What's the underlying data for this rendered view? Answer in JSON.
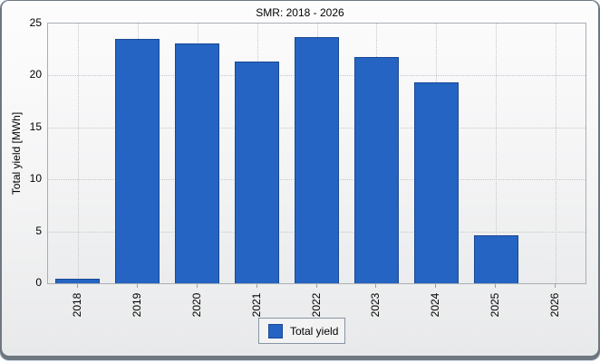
{
  "chart_data": {
    "type": "bar",
    "title": "SMR: 2018 - 2026",
    "ylabel": "Total yield [MWh]",
    "xlabel": "",
    "categories": [
      "2018",
      "2019",
      "2020",
      "2021",
      "2022",
      "2023",
      "2024",
      "2025",
      "2026"
    ],
    "series": [
      {
        "name": "Total yield",
        "values": [
          0.4,
          23.5,
          23.1,
          21.3,
          23.7,
          21.8,
          19.3,
          4.6,
          0
        ]
      }
    ],
    "ylim": [
      0,
      25
    ],
    "yticks": [
      0,
      5,
      10,
      15,
      20,
      25
    ],
    "grid": "dotted horizontal and vertical at category centers",
    "legend_position": "bottom-center",
    "bar_color": "#2564C2",
    "bar_border_color": "#1A4894"
  },
  "legend": {
    "items": [
      {
        "label": "Total yield",
        "color": "#2564C2"
      }
    ]
  }
}
